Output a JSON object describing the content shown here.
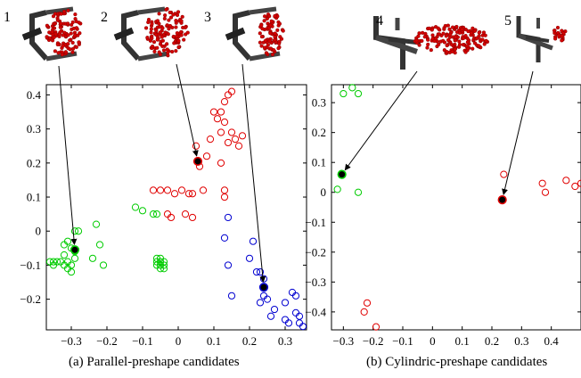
{
  "chart_data": [
    {
      "type": "scatter",
      "caption": "(a) Parallel-preshape candidates",
      "xlim": [
        -0.37,
        0.36
      ],
      "ylim": [
        -0.29,
        0.43
      ],
      "xticks": [
        -0.3,
        -0.2,
        -0.1,
        0,
        0.1,
        0.2,
        0.3
      ],
      "xtick_labels": [
        "−0.3",
        "−0.2",
        "−0.1",
        "0",
        "0.1",
        "0.2",
        "0.3"
      ],
      "yticks": [
        -0.2,
        -0.1,
        0,
        0.1,
        0.2,
        0.3,
        0.4
      ],
      "ytick_labels": [
        "−0.2",
        "−0.1",
        "0",
        "0.1",
        "0.2",
        "0.3",
        "0.4"
      ],
      "grid": false,
      "series": [
        {
          "color": "#00cc00",
          "points": [
            [
              -0.36,
              -0.09
            ],
            [
              -0.35,
              -0.09
            ],
            [
              -0.34,
              -0.09
            ],
            [
              -0.35,
              -0.1
            ],
            [
              -0.33,
              -0.09
            ],
            [
              -0.32,
              -0.1
            ],
            [
              -0.31,
              -0.11
            ],
            [
              -0.31,
              -0.09
            ],
            [
              -0.32,
              -0.07
            ],
            [
              -0.32,
              -0.04
            ],
            [
              -0.31,
              -0.03
            ],
            [
              -0.3,
              -0.05
            ],
            [
              -0.29,
              -0.06
            ],
            [
              -0.29,
              -0.08
            ],
            [
              -0.3,
              -0.1
            ],
            [
              -0.3,
              -0.12
            ],
            [
              -0.29,
              0.0
            ],
            [
              -0.28,
              0.0
            ],
            [
              -0.24,
              -0.08
            ],
            [
              -0.23,
              0.02
            ],
            [
              -0.22,
              -0.04
            ],
            [
              -0.21,
              -0.1
            ],
            [
              -0.12,
              0.07
            ],
            [
              -0.1,
              0.06
            ],
            [
              -0.07,
              0.05
            ],
            [
              -0.06,
              0.05
            ],
            [
              -0.06,
              -0.09
            ],
            [
              -0.05,
              -0.09
            ],
            [
              -0.06,
              -0.1
            ],
            [
              -0.05,
              -0.1
            ],
            [
              -0.04,
              -0.09
            ],
            [
              -0.04,
              -0.1
            ],
            [
              -0.06,
              -0.08
            ],
            [
              -0.05,
              -0.08
            ],
            [
              -0.04,
              -0.11
            ],
            [
              -0.05,
              -0.11
            ]
          ]
        },
        {
          "color": "#e00000",
          "points": [
            [
              0.14,
              0.4
            ],
            [
              0.15,
              0.41
            ],
            [
              0.13,
              0.38
            ],
            [
              0.12,
              0.35
            ],
            [
              0.1,
              0.35
            ],
            [
              0.11,
              0.33
            ],
            [
              0.13,
              0.32
            ],
            [
              0.12,
              0.29
            ],
            [
              0.15,
              0.29
            ],
            [
              0.16,
              0.27
            ],
            [
              0.18,
              0.28
            ],
            [
              0.17,
              0.25
            ],
            [
              0.14,
              0.26
            ],
            [
              0.09,
              0.27
            ],
            [
              0.08,
              0.22
            ],
            [
              0.05,
              0.25
            ],
            [
              0.12,
              0.2
            ],
            [
              0.06,
              0.19
            ],
            [
              -0.07,
              0.12
            ],
            [
              -0.05,
              0.12
            ],
            [
              -0.03,
              0.12
            ],
            [
              -0.01,
              0.11
            ],
            [
              0.01,
              0.12
            ],
            [
              0.03,
              0.11
            ],
            [
              0.04,
              0.11
            ],
            [
              0.07,
              0.12
            ],
            [
              0.13,
              0.12
            ],
            [
              0.13,
              0.1
            ],
            [
              -0.03,
              0.05
            ],
            [
              -0.02,
              0.04
            ],
            [
              0.02,
              0.05
            ],
            [
              0.04,
              0.04
            ]
          ]
        },
        {
          "color": "#0000d0",
          "points": [
            [
              0.14,
              0.04
            ],
            [
              0.13,
              -0.02
            ],
            [
              0.14,
              -0.1
            ],
            [
              0.15,
              -0.19
            ],
            [
              0.21,
              -0.03
            ],
            [
              0.2,
              -0.08
            ],
            [
              0.22,
              -0.12
            ],
            [
              0.23,
              -0.12
            ],
            [
              0.24,
              -0.14
            ],
            [
              0.24,
              -0.19
            ],
            [
              0.23,
              -0.21
            ],
            [
              0.25,
              -0.2
            ],
            [
              0.26,
              -0.25
            ],
            [
              0.27,
              -0.23
            ],
            [
              0.3,
              -0.21
            ],
            [
              0.32,
              -0.18
            ],
            [
              0.33,
              -0.19
            ],
            [
              0.3,
              -0.26
            ],
            [
              0.31,
              -0.27
            ],
            [
              0.33,
              -0.24
            ],
            [
              0.34,
              -0.25
            ],
            [
              0.34,
              -0.27
            ],
            [
              0.35,
              -0.28
            ]
          ]
        }
      ],
      "highlighted": [
        {
          "label": "1",
          "x": -0.29,
          "y": -0.055,
          "edge": "#00cc00"
        },
        {
          "label": "2",
          "x": 0.055,
          "y": 0.205,
          "edge": "#e00000"
        },
        {
          "label": "3",
          "x": 0.24,
          "y": -0.165,
          "edge": "#0000d0"
        }
      ]
    },
    {
      "type": "scatter",
      "caption": "(b) Cylindric-preshape candidates",
      "xlim": [
        -0.34,
        0.5
      ],
      "ylim": [
        -0.46,
        0.36
      ],
      "xticks": [
        -0.3,
        -0.2,
        -0.1,
        0,
        0.1,
        0.2,
        0.3,
        0.4
      ],
      "xtick_labels": [
        "−0.3",
        "−0.2",
        "−0.1",
        "0",
        "0.1",
        "0.2",
        "0.3",
        "0.4"
      ],
      "yticks": [
        -0.4,
        -0.3,
        -0.2,
        -0.1,
        0,
        0.1,
        0.2,
        0.3
      ],
      "ytick_labels": [
        "−0.4",
        "−0.3",
        "−0.2",
        "−0.1",
        "0",
        "0.1",
        "0.2",
        "0.3"
      ],
      "grid": false,
      "series": [
        {
          "color": "#00cc00",
          "points": [
            [
              -0.3,
              0.33
            ],
            [
              -0.27,
              0.35
            ],
            [
              -0.25,
              0.33
            ],
            [
              -0.32,
              0.01
            ],
            [
              -0.25,
              0.0
            ]
          ]
        },
        {
          "color": "#e00000",
          "points": [
            [
              0.24,
              0.06
            ],
            [
              0.37,
              0.03
            ],
            [
              0.38,
              0.0
            ],
            [
              0.45,
              0.04
            ],
            [
              0.48,
              0.02
            ],
            [
              0.5,
              0.03
            ],
            [
              -0.22,
              -0.37
            ],
            [
              -0.23,
              -0.4
            ],
            [
              -0.19,
              -0.45
            ]
          ]
        }
      ],
      "highlighted": [
        {
          "label": "4",
          "x": -0.305,
          "y": 0.06,
          "edge": "#00cc00"
        },
        {
          "label": "5",
          "x": 0.235,
          "y": -0.025,
          "edge": "#e00000"
        }
      ]
    }
  ]
}
